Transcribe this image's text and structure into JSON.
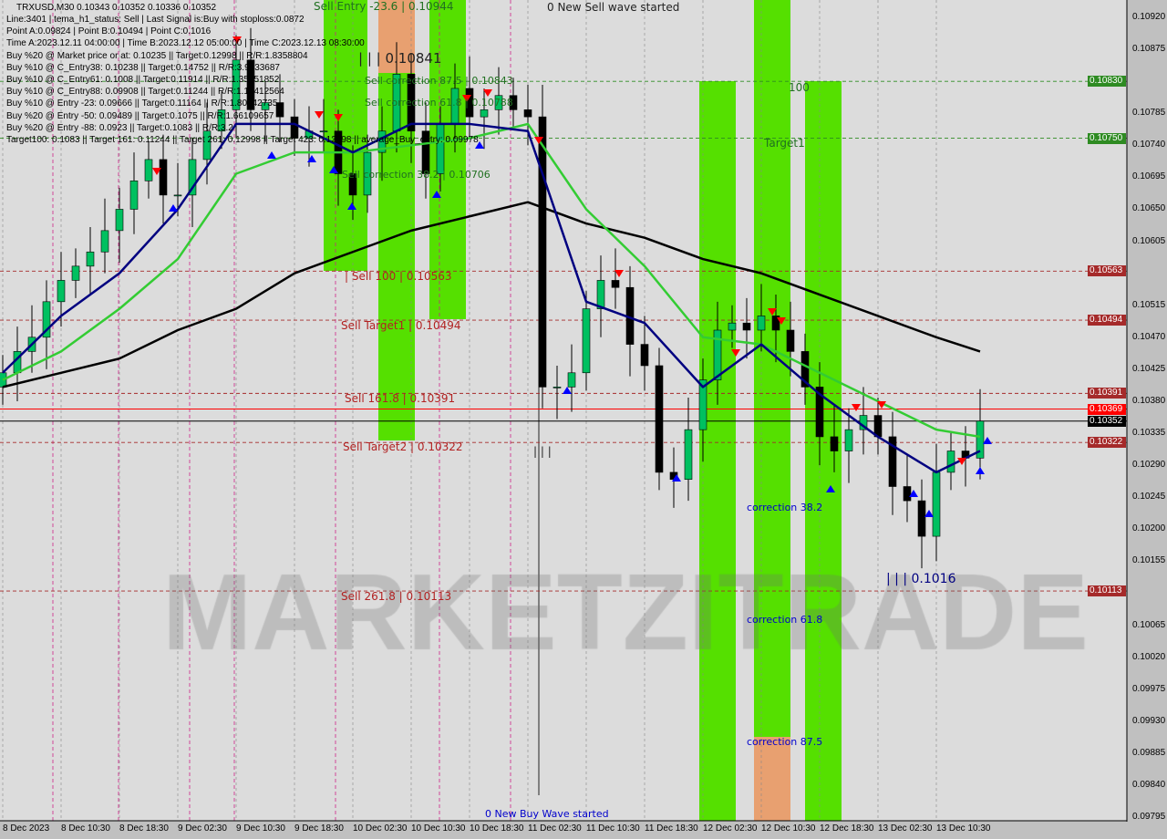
{
  "header": {
    "symbol_line": "TRXUSD,M30  0.10343 0.10352 0.10336 0.10352",
    "info_lines": [
      "Line:3401 | tema_h1_status: Sell | Last Signal is:Buy with stoploss:0.0872",
      "Point A:0.09824 | Point B:0.10494 | Point C:0.1016",
      "Time A:2023.12.11 04:00:00 | Time B:2023.12.12 05:00:00 | Time C:2023.12.13 08:30:00",
      "Buy %20 @ Market price or at: 0.10235 || Target:0.12998 || R/R:1.8358804",
      "Buy %10 @ C_Entry38: 0.10238 || Target:0.14752 || R/R:3.9933687",
      "Buy %10 @ C_Entry61: 0.1008 || Target:0.11914 || R/R:1.35851852",
      "Buy %10 @ C_Entry88: 0.09908 || Target:0.11244 || R/R:1.13412564",
      "Buy %10 @ Entry -23: 0.09666 || Target:0.11164 || R/R:1.80042735",
      "Buy %20 @ Entry -50: 0.09489 || Target:0.1075 || R/R:1.66109657",
      "Buy %20 @ Entry -88: 0.0923 || Target:0.1083 || R/R:3.2",
      "Target100: 0.1083 || Target 161: 0.11244 || Target 261: 0.12998 || Target 423: 0.12998 || average_Buy_entry: 0.09978"
    ],
    "overlay_signal": "0 New Sell wave started"
  },
  "annotations": {
    "sell_entry": "Sell Entry -23.6 | 0.10944",
    "point_b_marker": "| | | 0.10841",
    "sell_corr_875": "Sell correction 87.5 | 0.10843",
    "sell_corr_618": "Sell correction 61.8 | 0.10788",
    "sell_corr_382": "Sell correction 38.2 | 0.10706",
    "sell_100": "| Sell 100 | 0.10563",
    "sell_target1": "Sell Target1 | 0.10494",
    "sell_1618": "Sell 161.8 | 0.10391",
    "sell_target2": "Sell Target2 | 0.10322",
    "sell_2618": "Sell 261.8 | 0.10113",
    "point_a_marker": "| | |",
    "buy_100": "100",
    "buy_target1": "Target1",
    "corr_382": "correction 38.2",
    "corr_618": "correction 61.8",
    "corr_875": "correction 87.5",
    "point_c_marker": "| | | 0.1016",
    "new_buy_wave": "0 New Buy Wave started",
    "watermark": "MARKETZITRADE"
  },
  "chart_data": {
    "type": "candlestick",
    "symbol": "TRXUSD",
    "timeframe": "M30",
    "ylim": [
      0.09795,
      0.1092
    ],
    "y_ticks": [
      "0.10920",
      "0.10875",
      "0.10785",
      "0.10740",
      "0.10695",
      "0.10650",
      "0.10605",
      "0.10515",
      "0.10470",
      "0.10425",
      "0.10380",
      "0.10335",
      "0.10290",
      "0.10245",
      "0.10200",
      "0.10155",
      "0.10065",
      "0.10020",
      "0.09975",
      "0.09930",
      "0.09885",
      "0.09840",
      "0.09795"
    ],
    "x_ticks": [
      "8 Dec 2023",
      "8 Dec 10:30",
      "8 Dec 18:30",
      "9 Dec 02:30",
      "9 Dec 10:30",
      "9 Dec 18:30",
      "10 Dec 02:30",
      "10 Dec 10:30",
      "10 Dec 18:30",
      "11 Dec 02:30",
      "11 Dec 10:30",
      "11 Dec 18:30",
      "12 Dec 02:30",
      "12 Dec 10:30",
      "12 Dec 18:30",
      "13 Dec 02:30",
      "13 Dec 10:30"
    ],
    "close": [
      0.1042,
      0.1045,
      0.1047,
      0.1052,
      0.1055,
      0.1057,
      0.1059,
      0.1062,
      0.1065,
      0.1069,
      0.1072,
      0.1067,
      0.1067,
      0.1072,
      0.1076,
      0.1079,
      0.1086,
      0.1079,
      0.108,
      0.1078,
      0.1075,
      0.1076,
      0.1076,
      0.107,
      0.1067,
      0.1073,
      0.1076,
      0.1084,
      0.1076,
      0.107,
      0.1077,
      0.1082,
      0.1078,
      0.1079,
      0.1081,
      0.1079,
      0.1078,
      0.104,
      0.104,
      0.1042,
      0.1051,
      0.1055,
      0.1054,
      0.1046,
      0.1043,
      0.1028,
      0.1027,
      0.1034,
      0.1041,
      0.1048,
      0.1049,
      0.1048,
      0.105,
      0.1048,
      0.1045,
      0.104,
      0.1033,
      0.1031,
      0.1034,
      0.1036,
      0.1033,
      0.1026,
      0.1024,
      0.1019,
      0.1028,
      0.1031,
      0.103,
      0.10352
    ],
    "ma_black": [
      0.104,
      0.1042,
      0.1044,
      0.1048,
      0.1051,
      0.1056,
      0.1059,
      0.1062,
      0.1064,
      0.1066,
      0.1063,
      0.1061,
      0.1058,
      0.1056,
      0.1053,
      0.105,
      0.1047,
      0.1045
    ],
    "ma_green": [
      0.1041,
      0.1045,
      0.1051,
      0.1058,
      0.107,
      0.1073,
      0.1073,
      0.1074,
      0.1075,
      0.1077,
      0.1065,
      0.1057,
      0.1047,
      0.1046,
      0.1042,
      0.1038,
      0.1034,
      0.1033
    ],
    "ma_blue": [
      0.1042,
      0.105,
      0.1056,
      0.1065,
      0.1077,
      0.1077,
      0.1073,
      0.1077,
      0.1077,
      0.1076,
      0.1052,
      0.1049,
      0.104,
      0.1046,
      0.1039,
      0.1033,
      0.1028,
      0.1031
    ],
    "levels": [
      {
        "price": "0.10830",
        "color": "#2e8b22",
        "style": "dashed"
      },
      {
        "price": "0.10750",
        "color": "#2e8b22",
        "style": "dashed"
      },
      {
        "price": "0.10563",
        "color": "#a52a2a",
        "style": "dashed"
      },
      {
        "price": "0.10494",
        "color": "#a52a2a",
        "style": "dashed"
      },
      {
        "price": "0.10391",
        "color": "#a52a2a",
        "style": "dashed"
      },
      {
        "price": "0.10369",
        "color": "#ff0000",
        "style": "solid"
      },
      {
        "price": "0.10352",
        "color": "#000000",
        "style": "solid"
      },
      {
        "price": "0.10322",
        "color": "#a52a2a",
        "style": "dashed"
      },
      {
        "price": "0.10113",
        "color": "#a52a2a",
        "style": "dashed"
      }
    ],
    "colors": {
      "bull": "#00c060",
      "bear": "#000000",
      "zone_green": "#55e000",
      "zone_orange": "#e8a070",
      "ma_black": "#000000",
      "ma_green": "#33cc33",
      "ma_blue": "#000080"
    }
  }
}
